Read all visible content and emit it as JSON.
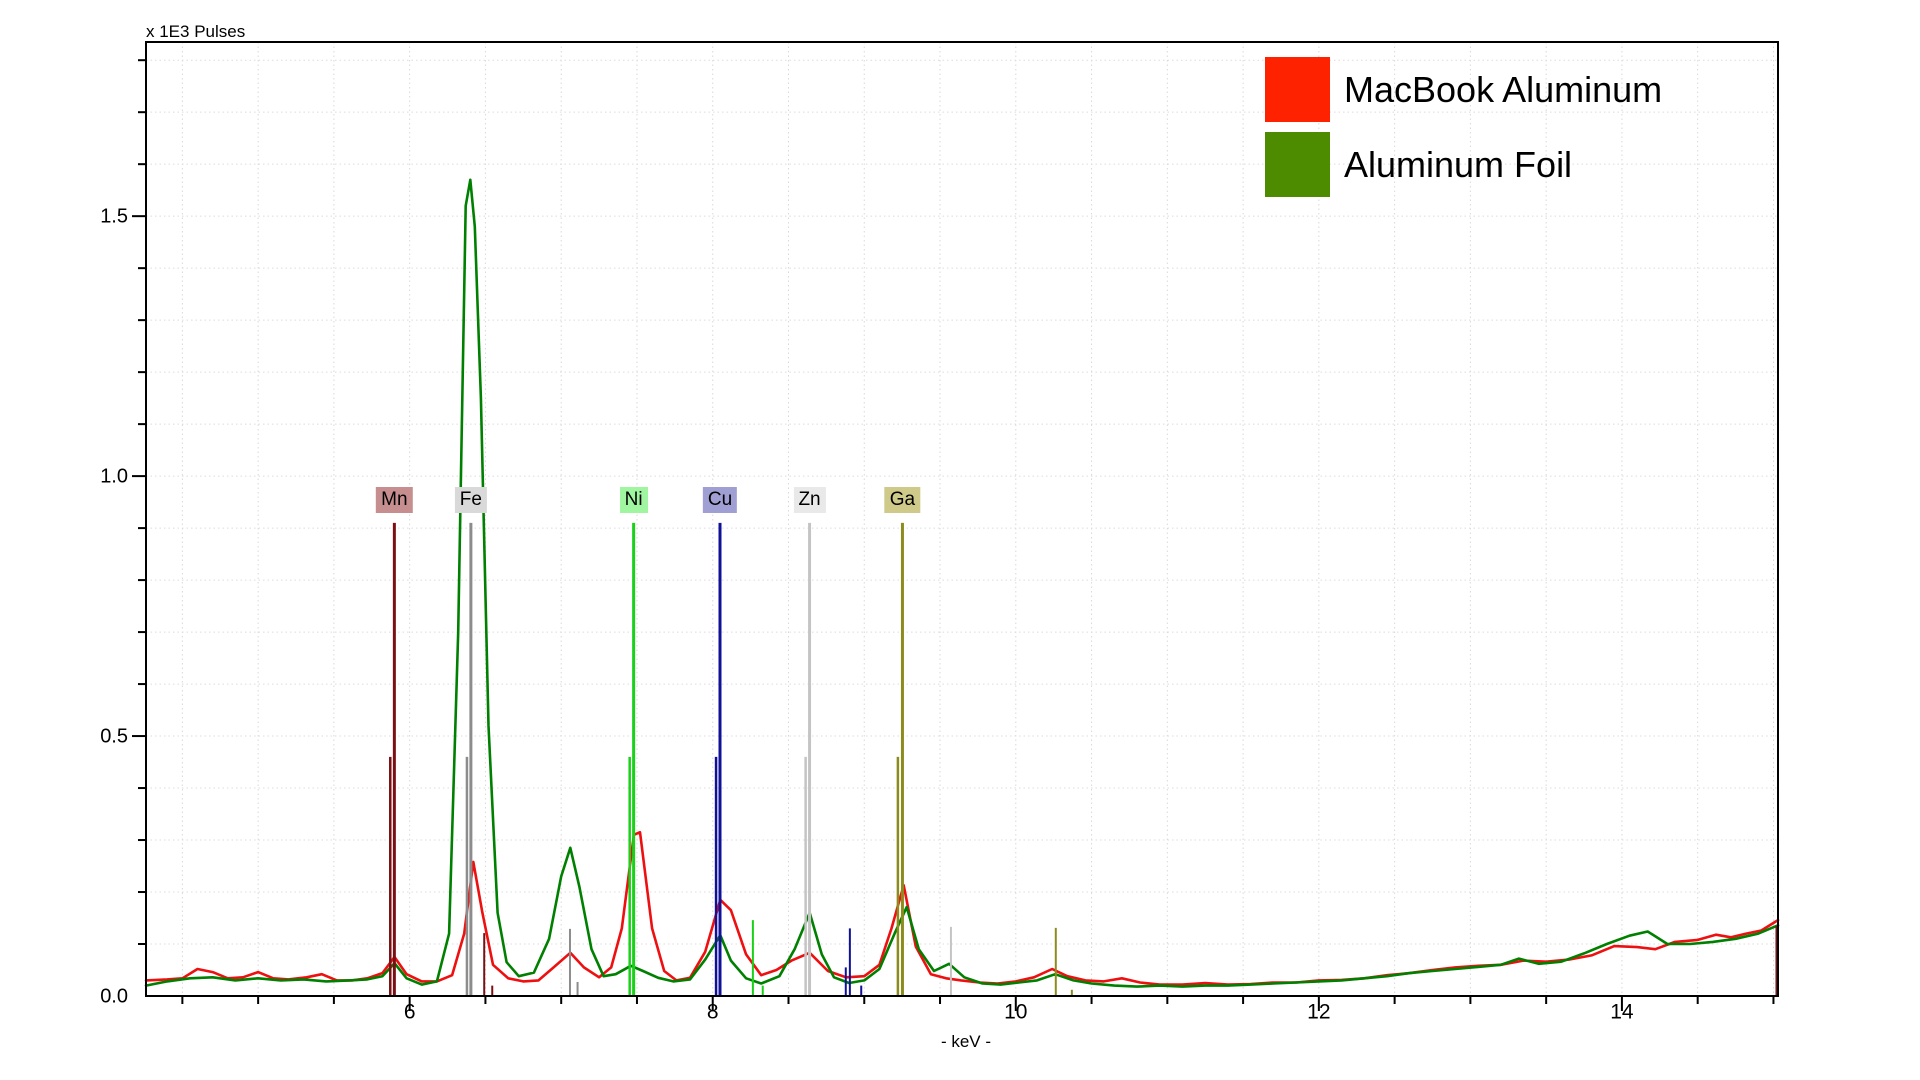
{
  "title": "x 1E3 Pulses",
  "legend": {
    "items": [
      {
        "label": "MacBook Aluminum",
        "color": "#ff2200"
      },
      {
        "label": "Aluminum Foil",
        "color": "#4d8c00"
      }
    ]
  },
  "chart_data": {
    "type": "line",
    "title": "x 1E3 Pulses",
    "xlabel": "- keV -",
    "ylabel": "x 1E3 Pulses",
    "xlim": [
      4.26,
      15.03
    ],
    "ylim": [
      0,
      1.835
    ],
    "x_tick_labels": [
      "6",
      "8",
      "10",
      "12",
      "14"
    ],
    "x_major_ticks": [
      6,
      8,
      10,
      12,
      14
    ],
    "x_minor_tick_step": 0.5,
    "y_tick_labels": [
      "0.0",
      "0.5",
      "1.0",
      "1.5"
    ],
    "y_major_ticks": [
      0.0,
      0.5,
      1.0,
      1.5
    ],
    "y_minor_tick_step": 0.1,
    "grid": "dotted, vertical every 0.5 keV, horizontal every 0.1",
    "legend_position": "top-right",
    "series": [
      {
        "name": "MacBook Aluminum",
        "color": "#ee1010",
        "points": [
          [
            4.26,
            0.03
          ],
          [
            4.4,
            0.032
          ],
          [
            4.5,
            0.034
          ],
          [
            4.6,
            0.052
          ],
          [
            4.7,
            0.046
          ],
          [
            4.8,
            0.034
          ],
          [
            4.9,
            0.036
          ],
          [
            5.0,
            0.046
          ],
          [
            5.1,
            0.034
          ],
          [
            5.2,
            0.032
          ],
          [
            5.32,
            0.036
          ],
          [
            5.42,
            0.042
          ],
          [
            5.52,
            0.03
          ],
          [
            5.62,
            0.03
          ],
          [
            5.72,
            0.034
          ],
          [
            5.82,
            0.044
          ],
          [
            5.9,
            0.075
          ],
          [
            5.98,
            0.042
          ],
          [
            6.08,
            0.028
          ],
          [
            6.18,
            0.028
          ],
          [
            6.28,
            0.04
          ],
          [
            6.36,
            0.12
          ],
          [
            6.42,
            0.258
          ],
          [
            6.48,
            0.16
          ],
          [
            6.55,
            0.06
          ],
          [
            6.65,
            0.034
          ],
          [
            6.75,
            0.028
          ],
          [
            6.85,
            0.03
          ],
          [
            6.95,
            0.055
          ],
          [
            7.06,
            0.083
          ],
          [
            7.15,
            0.055
          ],
          [
            7.25,
            0.036
          ],
          [
            7.33,
            0.055
          ],
          [
            7.4,
            0.13
          ],
          [
            7.48,
            0.31
          ],
          [
            7.52,
            0.315
          ],
          [
            7.6,
            0.13
          ],
          [
            7.68,
            0.048
          ],
          [
            7.76,
            0.03
          ],
          [
            7.85,
            0.035
          ],
          [
            7.95,
            0.085
          ],
          [
            8.05,
            0.185
          ],
          [
            8.12,
            0.165
          ],
          [
            8.22,
            0.08
          ],
          [
            8.32,
            0.04
          ],
          [
            8.42,
            0.05
          ],
          [
            8.52,
            0.068
          ],
          [
            8.64,
            0.083
          ],
          [
            8.76,
            0.048
          ],
          [
            8.88,
            0.036
          ],
          [
            9.0,
            0.038
          ],
          [
            9.1,
            0.06
          ],
          [
            9.18,
            0.13
          ],
          [
            9.26,
            0.213
          ],
          [
            9.34,
            0.095
          ],
          [
            9.44,
            0.042
          ],
          [
            9.54,
            0.034
          ],
          [
            9.64,
            0.03
          ],
          [
            9.76,
            0.026
          ],
          [
            9.88,
            0.024
          ],
          [
            10.0,
            0.028
          ],
          [
            10.12,
            0.036
          ],
          [
            10.24,
            0.052
          ],
          [
            10.34,
            0.038
          ],
          [
            10.46,
            0.03
          ],
          [
            10.58,
            0.028
          ],
          [
            10.7,
            0.034
          ],
          [
            10.82,
            0.026
          ],
          [
            10.95,
            0.022
          ],
          [
            11.1,
            0.022
          ],
          [
            11.25,
            0.025
          ],
          [
            11.4,
            0.022
          ],
          [
            11.55,
            0.023
          ],
          [
            11.7,
            0.026
          ],
          [
            11.85,
            0.026
          ],
          [
            12.0,
            0.03
          ],
          [
            12.15,
            0.031
          ],
          [
            12.3,
            0.034
          ],
          [
            12.45,
            0.04
          ],
          [
            12.6,
            0.044
          ],
          [
            12.75,
            0.05
          ],
          [
            12.9,
            0.055
          ],
          [
            13.05,
            0.058
          ],
          [
            13.2,
            0.06
          ],
          [
            13.35,
            0.068
          ],
          [
            13.5,
            0.066
          ],
          [
            13.65,
            0.07
          ],
          [
            13.8,
            0.078
          ],
          [
            13.95,
            0.096
          ],
          [
            14.1,
            0.094
          ],
          [
            14.22,
            0.09
          ],
          [
            14.35,
            0.104
          ],
          [
            14.5,
            0.108
          ],
          [
            14.62,
            0.118
          ],
          [
            14.72,
            0.113
          ],
          [
            14.82,
            0.12
          ],
          [
            14.92,
            0.126
          ],
          [
            15.03,
            0.146
          ]
        ]
      },
      {
        "name": "Aluminum Foil",
        "color": "#008000",
        "points": [
          [
            4.26,
            0.02
          ],
          [
            4.4,
            0.028
          ],
          [
            4.55,
            0.034
          ],
          [
            4.7,
            0.036
          ],
          [
            4.85,
            0.03
          ],
          [
            5.0,
            0.034
          ],
          [
            5.15,
            0.03
          ],
          [
            5.3,
            0.032
          ],
          [
            5.45,
            0.028
          ],
          [
            5.6,
            0.03
          ],
          [
            5.72,
            0.032
          ],
          [
            5.82,
            0.038
          ],
          [
            5.9,
            0.063
          ],
          [
            5.98,
            0.034
          ],
          [
            6.08,
            0.022
          ],
          [
            6.18,
            0.028
          ],
          [
            6.26,
            0.12
          ],
          [
            6.32,
            0.7
          ],
          [
            6.37,
            1.52
          ],
          [
            6.4,
            1.57
          ],
          [
            6.43,
            1.48
          ],
          [
            6.47,
            1.15
          ],
          [
            6.52,
            0.52
          ],
          [
            6.58,
            0.16
          ],
          [
            6.64,
            0.065
          ],
          [
            6.72,
            0.038
          ],
          [
            6.82,
            0.045
          ],
          [
            6.92,
            0.11
          ],
          [
            7.0,
            0.23
          ],
          [
            7.06,
            0.285
          ],
          [
            7.12,
            0.21
          ],
          [
            7.2,
            0.09
          ],
          [
            7.28,
            0.038
          ],
          [
            7.36,
            0.042
          ],
          [
            7.46,
            0.058
          ],
          [
            7.54,
            0.048
          ],
          [
            7.64,
            0.035
          ],
          [
            7.74,
            0.028
          ],
          [
            7.85,
            0.032
          ],
          [
            7.95,
            0.07
          ],
          [
            8.05,
            0.117
          ],
          [
            8.12,
            0.068
          ],
          [
            8.22,
            0.034
          ],
          [
            8.32,
            0.024
          ],
          [
            8.44,
            0.038
          ],
          [
            8.54,
            0.09
          ],
          [
            8.64,
            0.16
          ],
          [
            8.72,
            0.08
          ],
          [
            8.8,
            0.036
          ],
          [
            8.9,
            0.025
          ],
          [
            9.0,
            0.03
          ],
          [
            9.1,
            0.052
          ],
          [
            9.2,
            0.12
          ],
          [
            9.28,
            0.171
          ],
          [
            9.36,
            0.09
          ],
          [
            9.46,
            0.048
          ],
          [
            9.56,
            0.062
          ],
          [
            9.66,
            0.036
          ],
          [
            9.78,
            0.024
          ],
          [
            9.9,
            0.022
          ],
          [
            10.02,
            0.026
          ],
          [
            10.14,
            0.03
          ],
          [
            10.26,
            0.042
          ],
          [
            10.38,
            0.03
          ],
          [
            10.5,
            0.024
          ],
          [
            10.65,
            0.02
          ],
          [
            10.8,
            0.018
          ],
          [
            10.95,
            0.02
          ],
          [
            11.1,
            0.018
          ],
          [
            11.25,
            0.02
          ],
          [
            11.4,
            0.02
          ],
          [
            11.55,
            0.022
          ],
          [
            11.7,
            0.024
          ],
          [
            11.85,
            0.026
          ],
          [
            12.0,
            0.028
          ],
          [
            12.15,
            0.03
          ],
          [
            12.3,
            0.034
          ],
          [
            12.45,
            0.038
          ],
          [
            12.6,
            0.044
          ],
          [
            12.75,
            0.048
          ],
          [
            12.9,
            0.052
          ],
          [
            13.05,
            0.056
          ],
          [
            13.2,
            0.06
          ],
          [
            13.32,
            0.072
          ],
          [
            13.45,
            0.062
          ],
          [
            13.6,
            0.066
          ],
          [
            13.75,
            0.082
          ],
          [
            13.9,
            0.1
          ],
          [
            14.05,
            0.116
          ],
          [
            14.17,
            0.124
          ],
          [
            14.3,
            0.1
          ],
          [
            14.45,
            0.1
          ],
          [
            14.6,
            0.104
          ],
          [
            14.75,
            0.11
          ],
          [
            14.9,
            0.12
          ],
          [
            15.03,
            0.136
          ]
        ]
      }
    ],
    "element_markers": [
      {
        "element": "Mn",
        "line_color": "#7a1014",
        "label_bg": "#c68e8e",
        "lines": [
          {
            "kev": 5.899,
            "h": 0.91
          },
          {
            "kev": 5.872,
            "h": 0.46
          },
          {
            "kev": 6.492,
            "h": 0.121
          },
          {
            "kev": 6.545,
            "h": 0.02
          }
        ]
      },
      {
        "element": "Fe",
        "line_color": "#8c8c8c",
        "label_bg": "#d9d9d9",
        "lines": [
          {
            "kev": 6.404,
            "h": 0.91
          },
          {
            "kev": 6.378,
            "h": 0.46
          },
          {
            "kev": 7.058,
            "h": 0.129
          },
          {
            "kev": 7.108,
            "h": 0.027
          }
        ]
      },
      {
        "element": "Ni",
        "line_color": "#19d119",
        "label_bg": "#a0f5a0",
        "lines": [
          {
            "kev": 7.478,
            "h": 0.91
          },
          {
            "kev": 7.452,
            "h": 0.46
          },
          {
            "kev": 8.265,
            "h": 0.146
          },
          {
            "kev": 8.33,
            "h": 0.02
          }
        ]
      },
      {
        "element": "Cu",
        "line_color": "#101099",
        "label_bg": "#9f9fd4",
        "lines": [
          {
            "kev": 8.048,
            "h": 0.91
          },
          {
            "kev": 8.022,
            "h": 0.46
          },
          {
            "kev": 8.905,
            "h": 0.13
          },
          {
            "kev": 8.878,
            "h": 0.055
          },
          {
            "kev": 8.98,
            "h": 0.02
          }
        ]
      },
      {
        "element": "Zn",
        "line_color": "#c4c4c4",
        "label_bg": "#e9e9e9",
        "lines": [
          {
            "kev": 8.639,
            "h": 0.91
          },
          {
            "kev": 8.613,
            "h": 0.46
          },
          {
            "kev": 9.572,
            "h": 0.133
          }
        ]
      },
      {
        "element": "Ga",
        "line_color": "#8c8c1e",
        "label_bg": "#cfc98a",
        "lines": [
          {
            "kev": 9.252,
            "h": 0.91
          },
          {
            "kev": 9.222,
            "h": 0.46
          },
          {
            "kev": 10.264,
            "h": 0.131
          },
          {
            "kev": 10.37,
            "h": 0.012
          }
        ]
      },
      {
        "element": "",
        "line_color": "#7a1014",
        "label_bg": null,
        "lines": [
          {
            "kev": 15.02,
            "h": 0.135
          }
        ]
      }
    ]
  }
}
